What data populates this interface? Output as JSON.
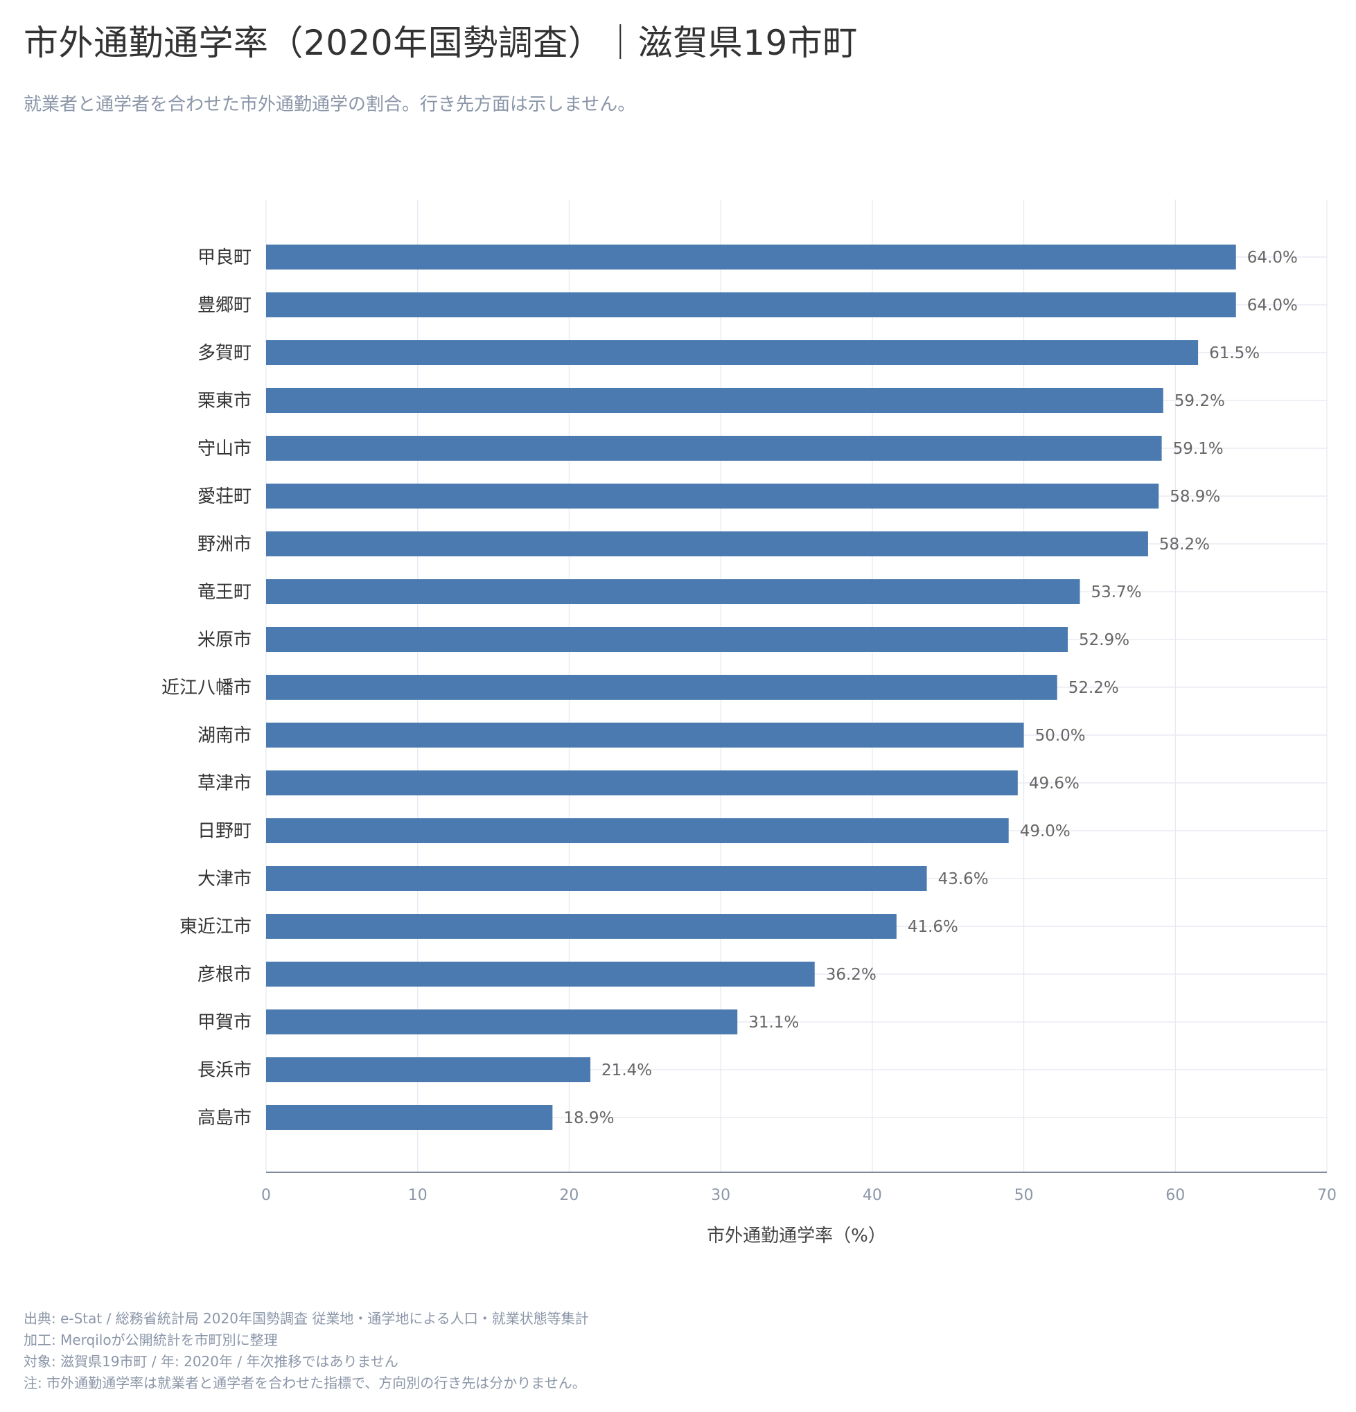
{
  "title": "市外通勤通学率（2020年国勢調査）｜滋賀県19市町",
  "subtitle": "就業者と通学者を合わせた市外通勤通学の割合。行き先方面は示しません。",
  "footer": [
    "出典: e-Stat / 総務省統計局 2020年国勢調査 従業地・通学地による人口・就業状態等集計",
    "加工: Merqiloが公開統計を市町別に整理",
    "対象: 滋賀県19市町 / 年: 2020年 / 年次推移ではありません",
    "注: 市外通勤通学率は就業者と通学者を合わせた指標で、方向別の行き先は分かりません。"
  ],
  "colors": {
    "bar": "#4a7aaf",
    "grid": "#e4e8f0",
    "axis": "#7f8a9c"
  },
  "chart_data": {
    "type": "bar",
    "orientation": "horizontal",
    "categories": [
      "甲良町",
      "豊郷町",
      "多賀町",
      "栗東市",
      "守山市",
      "愛荘町",
      "野洲市",
      "竜王町",
      "米原市",
      "近江八幡市",
      "湖南市",
      "草津市",
      "日野町",
      "大津市",
      "東近江市",
      "彦根市",
      "甲賀市",
      "長浜市",
      "高島市"
    ],
    "values": [
      64.0,
      64.0,
      61.5,
      59.2,
      59.1,
      58.9,
      58.2,
      53.7,
      52.9,
      52.2,
      50.0,
      49.6,
      49.0,
      43.6,
      41.6,
      36.2,
      31.1,
      21.4,
      18.9
    ],
    "value_labels": [
      "64.0%",
      "64.0%",
      "61.5%",
      "59.2%",
      "59.1%",
      "58.9%",
      "58.2%",
      "53.7%",
      "52.9%",
      "52.2%",
      "50.0%",
      "49.6%",
      "49.0%",
      "43.6%",
      "41.6%",
      "36.2%",
      "31.1%",
      "21.4%",
      "18.9%"
    ],
    "xlabel": "市外通勤通学率（%）",
    "ylabel": "",
    "xlim": [
      0,
      70
    ],
    "xticks": [
      0,
      10,
      20,
      30,
      40,
      50,
      60,
      70
    ],
    "xtick_labels": [
      "0",
      "10",
      "20",
      "30",
      "40",
      "50",
      "60",
      "70"
    ],
    "grid": true,
    "legend": "none"
  }
}
